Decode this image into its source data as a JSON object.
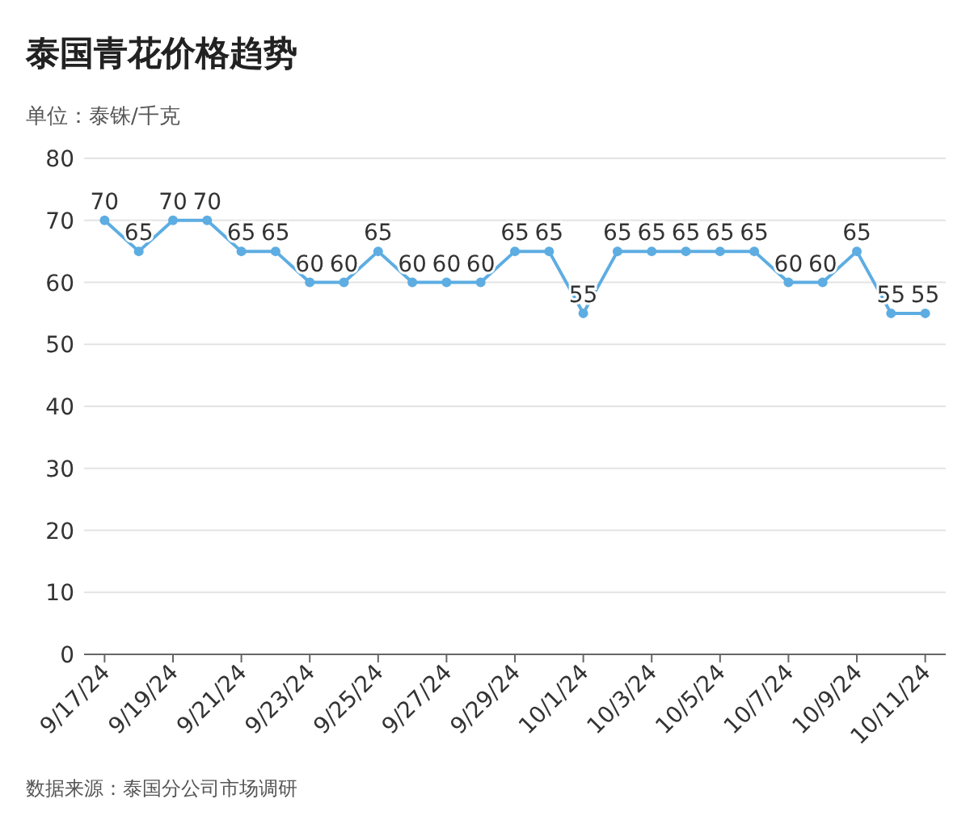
{
  "chart_data": {
    "type": "line",
    "title": "泰国青花价格趋势",
    "ylabel": "单位：泰铢/千克",
    "categories": [
      "9/17/24",
      null,
      "9/19/24",
      null,
      "9/21/24",
      null,
      "9/23/24",
      null,
      "9/25/24",
      null,
      "9/27/24",
      null,
      "9/29/24",
      null,
      "10/1/24",
      null,
      "10/3/24",
      null,
      "10/5/24",
      null,
      "10/7/24",
      null,
      "10/9/24",
      null,
      "10/11/24"
    ],
    "series": [
      {
        "color": "#5dade2",
        "values": [
          70,
          65,
          70,
          70,
          65,
          65,
          60,
          60,
          65,
          60,
          60,
          60,
          65,
          65,
          55,
          65,
          65,
          65,
          65,
          65,
          60,
          60,
          65,
          55,
          55
        ]
      }
    ],
    "ylim": [
      0,
      80
    ],
    "yticks": [
      0,
      10,
      20,
      30,
      40,
      50,
      60,
      70,
      80
    ],
    "grid": "y",
    "marker": "circle",
    "data_labels": true,
    "annotations": [
      "数据来源：泰国分公司市场调研"
    ]
  }
}
